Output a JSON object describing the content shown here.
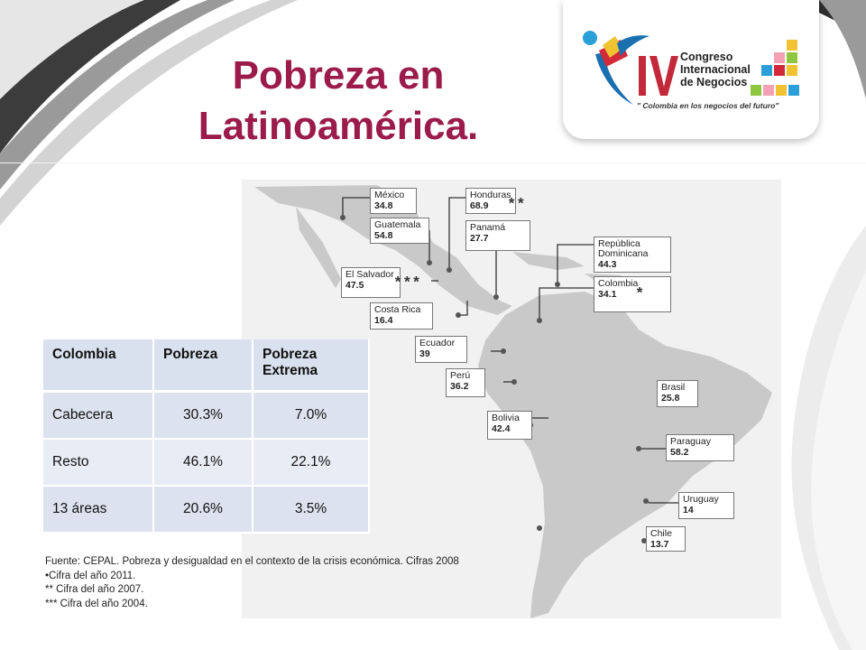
{
  "title": "Pobreza en Latinoamérica.",
  "logo": {
    "numeral": "IV",
    "lines": [
      "Congreso",
      "Internacional",
      "de Negocios"
    ],
    "slogan": "\" Colombia en los negocios del futuro\""
  },
  "map_labels": [
    {
      "name": "México",
      "value": "34.8",
      "mark": ""
    },
    {
      "name": "Honduras",
      "value": "68.9",
      "mark": "**"
    },
    {
      "name": "Guatemala",
      "value": "54.8",
      "mark": ""
    },
    {
      "name": "Panamá",
      "value": "27.7",
      "mark": ""
    },
    {
      "name": "República Dominicana",
      "value": "44.3",
      "mark": ""
    },
    {
      "name": "El Salvador",
      "value": "47.5",
      "mark": "***"
    },
    {
      "name": "Colombia",
      "value": "34.1",
      "mark": "*"
    },
    {
      "name": "Costa Rica",
      "value": "16.4",
      "mark": ""
    },
    {
      "name": "Ecuador",
      "value": "39",
      "mark": ""
    },
    {
      "name": "Perú",
      "value": "36.2",
      "mark": ""
    },
    {
      "name": "Brasil",
      "value": "25.8",
      "mark": ""
    },
    {
      "name": "Bolivia",
      "value": "42.4",
      "mark": ""
    },
    {
      "name": "Paraguay",
      "value": "58.2",
      "mark": ""
    },
    {
      "name": "Uruguay",
      "value": "14",
      "mark": ""
    },
    {
      "name": "Chile",
      "value": "13.7",
      "mark": ""
    }
  ],
  "table": {
    "headers": [
      "Colombia",
      "Pobreza",
      "Pobreza Extrema"
    ],
    "rows": [
      [
        "Cabecera",
        "30.3%",
        "7.0%"
      ],
      [
        "Resto",
        "46.1%",
        "22.1%"
      ],
      [
        "13 áreas",
        "20.6%",
        "3.5%"
      ]
    ]
  },
  "notes": [
    "Fuente: CEPAL. Pobreza y desigualdad en el contexto de la crisis económica. Cifras 2008",
    "•Cifra  del año 2011.",
    "** Cifra del año 2007.",
    "*** Cifra del año 2004."
  ],
  "colors": {
    "title": "#9b1b4a",
    "table_header": "#d9e1ee",
    "map_land": "#c9c9c9"
  }
}
